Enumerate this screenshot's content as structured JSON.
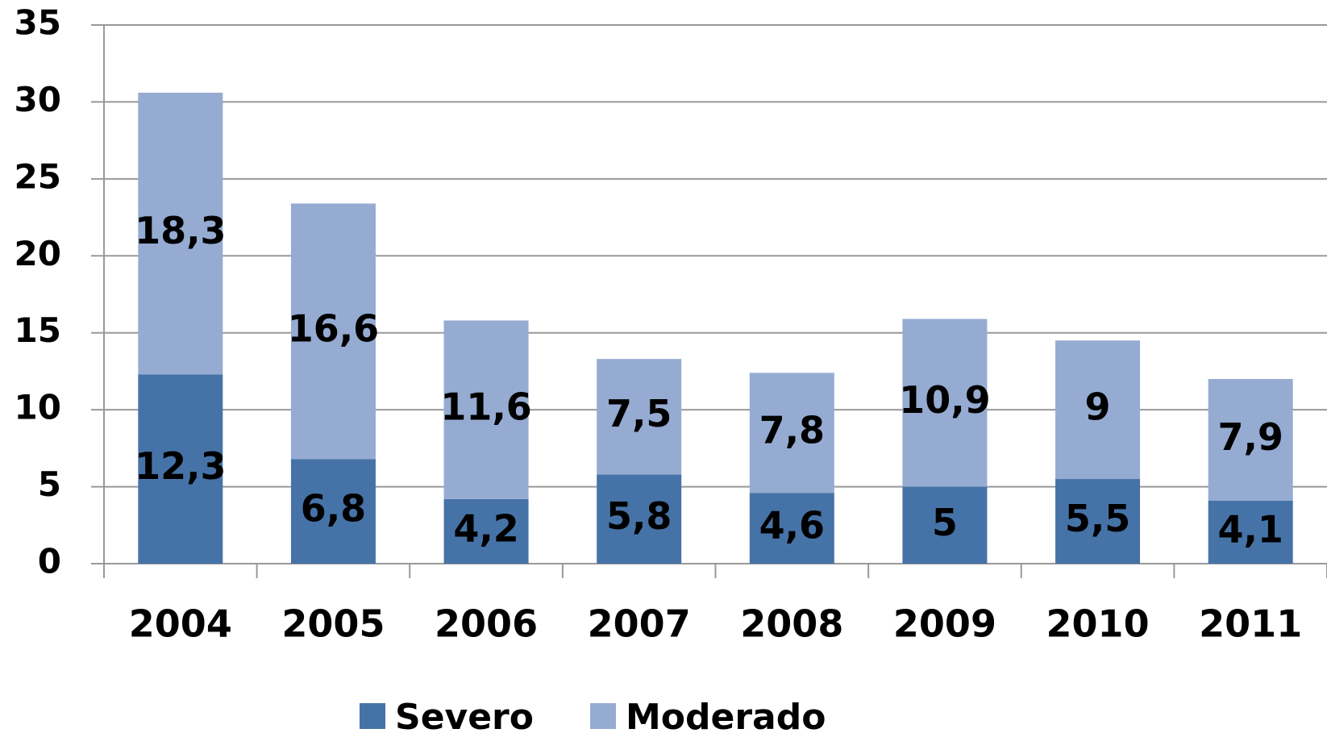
{
  "chart_data": {
    "type": "stacked_bar",
    "categories": [
      "2004",
      "2005",
      "2006",
      "2007",
      "2008",
      "2009",
      "2010",
      "2011"
    ],
    "series": [
      {
        "name": "Severo",
        "color": "#4673a7",
        "values": [
          12.3,
          6.8,
          4.2,
          5.8,
          4.6,
          5,
          5.5,
          4.1
        ],
        "value_labels": [
          "12,3",
          "6,8",
          "4,2",
          "5,8",
          "4,6",
          "5",
          "5,5",
          "4,1"
        ]
      },
      {
        "name": "Moderado",
        "color": "#95abd2",
        "values": [
          18.3,
          16.6,
          11.6,
          7.5,
          7.8,
          10.9,
          9,
          7.9
        ],
        "value_labels": [
          "18,3",
          "16,6",
          "11,6",
          "7,5",
          "7,8",
          "10,9",
          "9",
          "7,9"
        ]
      }
    ],
    "ylim": [
      0,
      35
    ],
    "yticks": [
      0,
      5,
      10,
      15,
      20,
      25,
      30,
      35
    ],
    "grid": true,
    "legend": "bottom"
  }
}
